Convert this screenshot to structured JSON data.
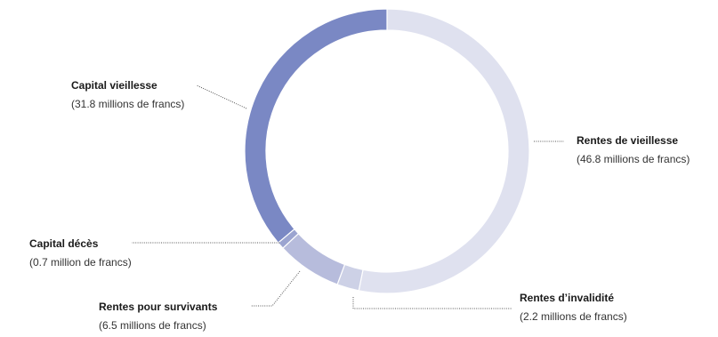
{
  "chart_data": {
    "type": "pie",
    "variant": "donut",
    "unit": "millions de francs",
    "start_angle_deg": 0,
    "direction": "clockwise",
    "slices": [
      {
        "key": "rentes_vieillesse",
        "label": "Rentes de vieillesse",
        "value": 46.8,
        "value_text": "(46.8 millions de francs)",
        "color": "#dfe1ef"
      },
      {
        "key": "rentes_invalidite",
        "label": "Rentes d’invalidité",
        "value": 2.2,
        "value_text": "(2.2 millions de francs)",
        "color": "#cdd1e6"
      },
      {
        "key": "rentes_survivants",
        "label": "Rentes pour survivants",
        "value": 6.5,
        "value_text": "(6.5 millions de francs)",
        "color": "#b7bcdc"
      },
      {
        "key": "capital_deces",
        "label": "Capital décès",
        "value": 0.7,
        "value_text": "(0.7 million de francs)",
        "color": "#9ba4d0"
      },
      {
        "key": "capital_vieillesse",
        "label": "Capital vieillesse",
        "value": 31.8,
        "value_text": "(31.8 millions de francs)",
        "color": "#7a88c4"
      }
    ]
  }
}
